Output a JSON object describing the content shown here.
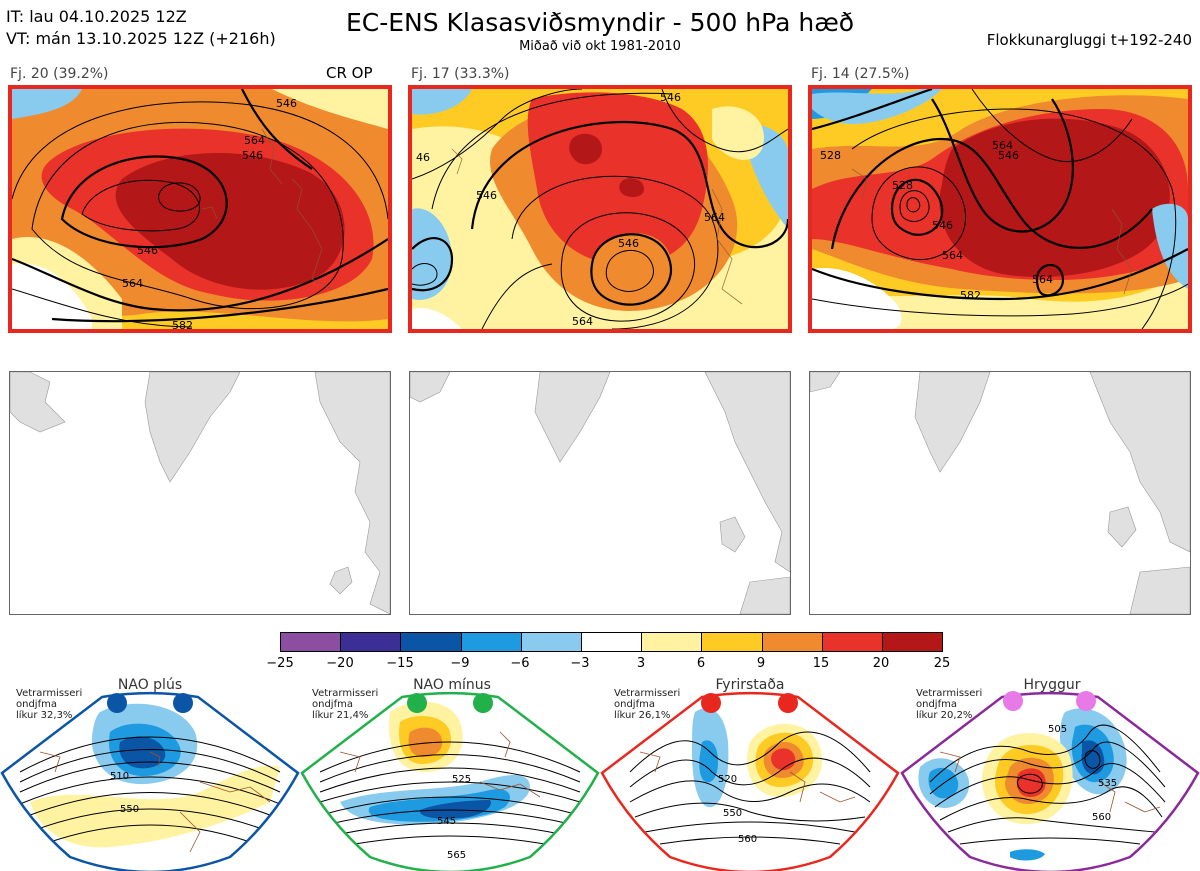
{
  "header": {
    "it_line": "IT: lau 04.10.2025 12Z",
    "vt_line": "VT: mán 13.10.2025 12Z  (+216h)",
    "title": "EC-ENS Klasasviðsmyndir - 500 hPa hæð",
    "subtitle": "Miðað við okt 1981-2010",
    "window": "Flokkunargluggi t+192-240"
  },
  "clusters": [
    {
      "label": "Fj. 20 (39.2%)",
      "tag": "CR OP",
      "contours": [
        "546",
        "546",
        "564",
        "546",
        "564",
        "582"
      ]
    },
    {
      "label": "Fj. 17 (33.3%)",
      "tag": "",
      "contours": [
        "546",
        "46",
        "546",
        "564",
        "564",
        "546"
      ]
    },
    {
      "label": "Fj. 14 (27.5%)",
      "tag": "",
      "contours": [
        "528",
        "528",
        "546",
        "564",
        "564",
        "582",
        "564",
        "546"
      ]
    }
  ],
  "colorbar": {
    "colors": [
      "#8c4ea0",
      "#3b2f96",
      "#0a55a5",
      "#1e9be0",
      "#88cbef",
      "#ffffff",
      "#fff2a0",
      "#fecb25",
      "#f08a2e",
      "#e8322a",
      "#b41717"
    ],
    "ticks": [
      "−25",
      "−20",
      "−15",
      "−9",
      "−6",
      "−3",
      "3",
      "6",
      "9",
      "15",
      "20",
      "25"
    ]
  },
  "regimes": [
    {
      "name": "NAO plús",
      "info": [
        "Vetrarmisseri",
        "ondjfma",
        "líkur 32,3%"
      ],
      "dot_color": "#0a55a5",
      "frame_color": "#0a55a5",
      "contours": [
        "510",
        "550"
      ]
    },
    {
      "name": "NAO mínus",
      "info": [
        "Vetrarmisseri",
        "ondjfma",
        "líkur 21,4%"
      ],
      "dot_color": "#22b04a",
      "frame_color": "#22b04a",
      "contours": [
        "525",
        "545",
        "565"
      ]
    },
    {
      "name": "Fyrirstaða",
      "info": [
        "Vetrarmisseri",
        "ondjfma",
        "líkur 26,1%"
      ],
      "dot_color": "#e8281f",
      "frame_color": "#e8281f",
      "contours": [
        "520",
        "550",
        "560"
      ]
    },
    {
      "name": "Hryggur",
      "info": [
        "Vetrarmisseri",
        "ondjfma",
        "líkur 20,2%"
      ],
      "dot_color": "#e87ae8",
      "frame_color": "#8a2a9a",
      "contours": [
        "505",
        "535",
        "560"
      ]
    }
  ]
}
